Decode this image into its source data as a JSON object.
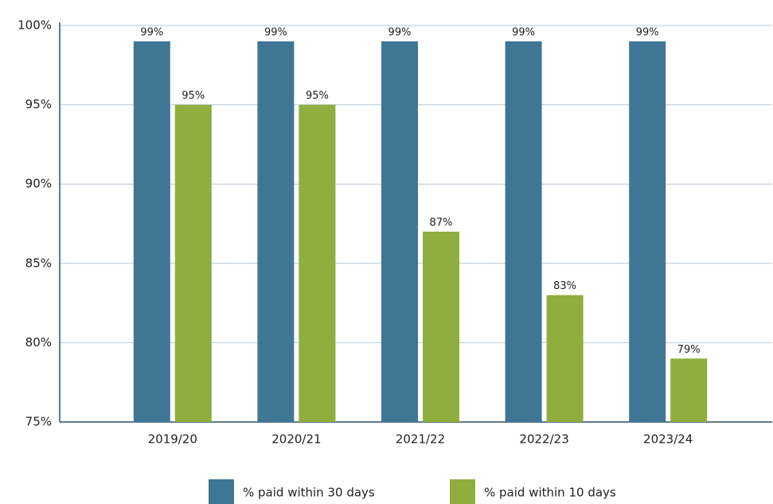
{
  "chart_data": {
    "type": "bar",
    "categories": [
      "2019/20",
      "2020/21",
      "2021/22",
      "2022/23",
      "2023/24"
    ],
    "series": [
      {
        "name": "% paid within 30 days",
        "color": "#3f7696",
        "values": [
          99,
          99,
          99,
          99,
          99
        ],
        "value_labels": [
          "99%",
          "99%",
          "99%",
          "99%",
          "99%"
        ]
      },
      {
        "name": "% paid within 10 days",
        "color": "#8fae3e",
        "values": [
          95,
          95,
          87,
          83,
          79
        ],
        "value_labels": [
          "95%",
          "95%",
          "87%",
          "83%",
          "79%"
        ]
      }
    ],
    "ylim": [
      75,
      100
    ],
    "yticks": [
      {
        "value": 75,
        "label": "75%"
      },
      {
        "value": 80,
        "label": "80%"
      },
      {
        "value": 85,
        "label": "85%"
      },
      {
        "value": 90,
        "label": "90%"
      },
      {
        "value": 95,
        "label": "95%"
      },
      {
        "value": 100,
        "label": "100%"
      }
    ],
    "grid": true,
    "legend": "bottom"
  }
}
